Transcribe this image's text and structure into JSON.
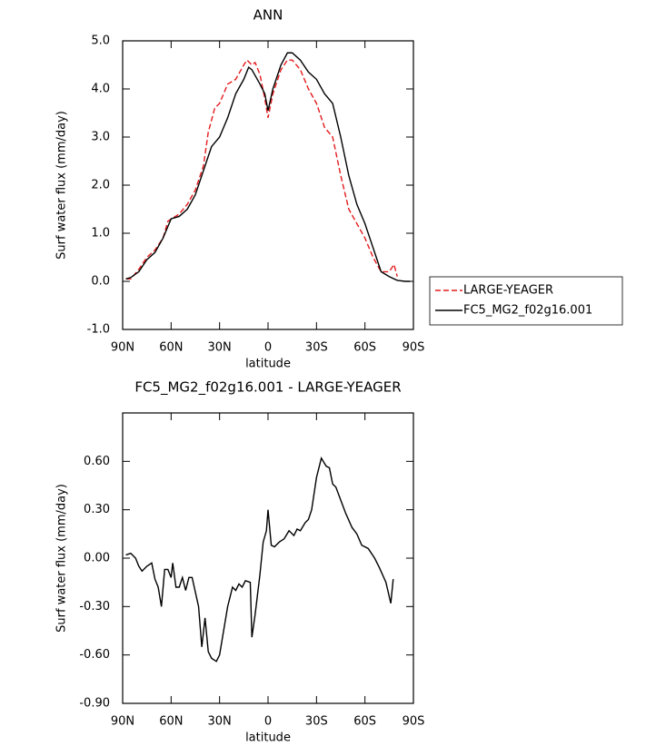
{
  "chart_data": [
    {
      "type": "line",
      "title": "ANN",
      "xlabel": "latitude",
      "ylabel": "Surf water flux (mm/day)",
      "xlim": [
        90,
        -90
      ],
      "xticks": [
        {
          "value": 90,
          "label": "90N"
        },
        {
          "value": 60,
          "label": "60N"
        },
        {
          "value": 30,
          "label": "30N"
        },
        0,
        {
          "value": -30,
          "label": "30S"
        },
        {
          "value": -60,
          "label": "60S"
        },
        {
          "value": -90,
          "label": "90S"
        }
      ],
      "ylim": [
        -1,
        5
      ],
      "yticks": [
        {
          "value": -1,
          "label": "-1.0"
        },
        {
          "value": 0,
          "label": "0.0"
        },
        {
          "value": 1,
          "label": "1.0"
        },
        {
          "value": 2,
          "label": "2.0"
        },
        {
          "value": 3,
          "label": "3.0"
        },
        {
          "value": 4,
          "label": "4.0"
        },
        {
          "value": 5,
          "label": "5.0"
        }
      ],
      "legend": "right",
      "series": [
        {
          "name": "LARGE-YEAGER",
          "color": "#e41a1c",
          "line_style": "dashed",
          "x": [
            88,
            85,
            80,
            75,
            70,
            65,
            62,
            55,
            50,
            45,
            40,
            37,
            33,
            30,
            25,
            20,
            15,
            13,
            10,
            8,
            5,
            2,
            0,
            -3,
            -8,
            -12,
            -15,
            -20,
            -25,
            -30,
            -35,
            -40,
            -45,
            -50,
            -55,
            -60,
            -65,
            -70,
            -75,
            -78,
            -80
          ],
          "values": [
            0.05,
            0.05,
            0.25,
            0.5,
            0.65,
            0.9,
            1.25,
            1.4,
            1.6,
            1.9,
            2.4,
            3.1,
            3.6,
            3.7,
            4.1,
            4.2,
            4.5,
            4.6,
            4.5,
            4.55,
            4.3,
            3.8,
            3.4,
            3.9,
            4.4,
            4.6,
            4.6,
            4.4,
            4.0,
            3.7,
            3.2,
            3.0,
            2.2,
            1.5,
            1.2,
            0.9,
            0.5,
            0.2,
            0.2,
            0.35,
            0.1
          ]
        },
        {
          "name": "FC5_MG2_f02g16.001",
          "color": "#000000",
          "line_style": "solid",
          "x": [
            88,
            85,
            80,
            75,
            70,
            65,
            60,
            55,
            50,
            45,
            40,
            35,
            30,
            25,
            20,
            15,
            12,
            10,
            5,
            2,
            0,
            -3,
            -8,
            -12,
            -15,
            -20,
            -25,
            -30,
            -35,
            -40,
            -45,
            -50,
            -55,
            -60,
            -65,
            -70,
            -75,
            -80,
            -85,
            -88
          ],
          "values": [
            0.05,
            0.08,
            0.2,
            0.45,
            0.6,
            0.9,
            1.3,
            1.35,
            1.5,
            1.8,
            2.3,
            2.8,
            3.0,
            3.4,
            3.9,
            4.2,
            4.45,
            4.4,
            4.1,
            3.9,
            3.55,
            4.0,
            4.5,
            4.75,
            4.75,
            4.6,
            4.35,
            4.2,
            3.9,
            3.7,
            3.0,
            2.2,
            1.6,
            1.2,
            0.7,
            0.2,
            0.1,
            0.02,
            0.0,
            0.0
          ]
        }
      ]
    },
    {
      "type": "line",
      "title": "FC5_MG2_f02g16.001 - LARGE-YEAGER",
      "xlabel": "latitude",
      "ylabel": "Surf water flux (mm/day)",
      "xlim": [
        90,
        -90
      ],
      "xticks": [
        {
          "value": 90,
          "label": "90N"
        },
        {
          "value": 60,
          "label": "60N"
        },
        {
          "value": 30,
          "label": "30N"
        },
        0,
        {
          "value": -30,
          "label": "30S"
        },
        {
          "value": -60,
          "label": "60S"
        },
        {
          "value": -90,
          "label": "90S"
        }
      ],
      "ylim": [
        -0.9,
        0.9
      ],
      "yticks": [
        {
          "value": -0.9,
          "label": "-0.90"
        },
        {
          "value": -0.6,
          "label": "-0.60"
        },
        {
          "value": -0.3,
          "label": "-0.30"
        },
        {
          "value": 0,
          "label": "0.00"
        },
        {
          "value": 0.3,
          "label": "0.30"
        },
        {
          "value": 0.6,
          "label": "0.60"
        }
      ],
      "series": [
        {
          "color": "#000000",
          "line_style": "solid",
          "x": [
            88,
            85,
            82,
            80,
            78,
            75,
            72,
            70,
            68,
            66,
            64,
            62,
            60,
            59,
            57,
            55,
            53,
            51,
            49,
            47,
            43,
            41,
            39,
            37,
            35,
            32,
            30,
            25,
            22,
            20,
            18,
            16,
            14,
            11,
            10,
            8,
            5,
            3,
            1,
            0,
            -2,
            -4,
            -7,
            -10,
            -13,
            -16,
            -18,
            -20,
            -23,
            -25,
            -27,
            -30,
            -33,
            -36,
            -38,
            -40,
            -42,
            -45,
            -48,
            -52,
            -55,
            -58,
            -62,
            -66,
            -69,
            -73,
            -76,
            -77.5
          ],
          "values": [
            0.02,
            0.03,
            0.0,
            -0.05,
            -0.08,
            -0.05,
            -0.03,
            -0.13,
            -0.18,
            -0.3,
            -0.07,
            -0.07,
            -0.12,
            -0.03,
            -0.18,
            -0.18,
            -0.12,
            -0.2,
            -0.12,
            -0.12,
            -0.3,
            -0.55,
            -0.37,
            -0.58,
            -0.62,
            -0.64,
            -0.6,
            -0.3,
            -0.18,
            -0.2,
            -0.16,
            -0.18,
            -0.14,
            -0.15,
            -0.49,
            -0.35,
            -0.1,
            0.1,
            0.17,
            0.3,
            0.08,
            0.07,
            0.1,
            0.12,
            0.17,
            0.14,
            0.18,
            0.17,
            0.22,
            0.24,
            0.3,
            0.5,
            0.62,
            0.57,
            0.56,
            0.46,
            0.44,
            0.36,
            0.28,
            0.19,
            0.15,
            0.08,
            0.06,
            0.0,
            -0.06,
            -0.15,
            -0.28,
            -0.13
          ]
        }
      ]
    }
  ]
}
